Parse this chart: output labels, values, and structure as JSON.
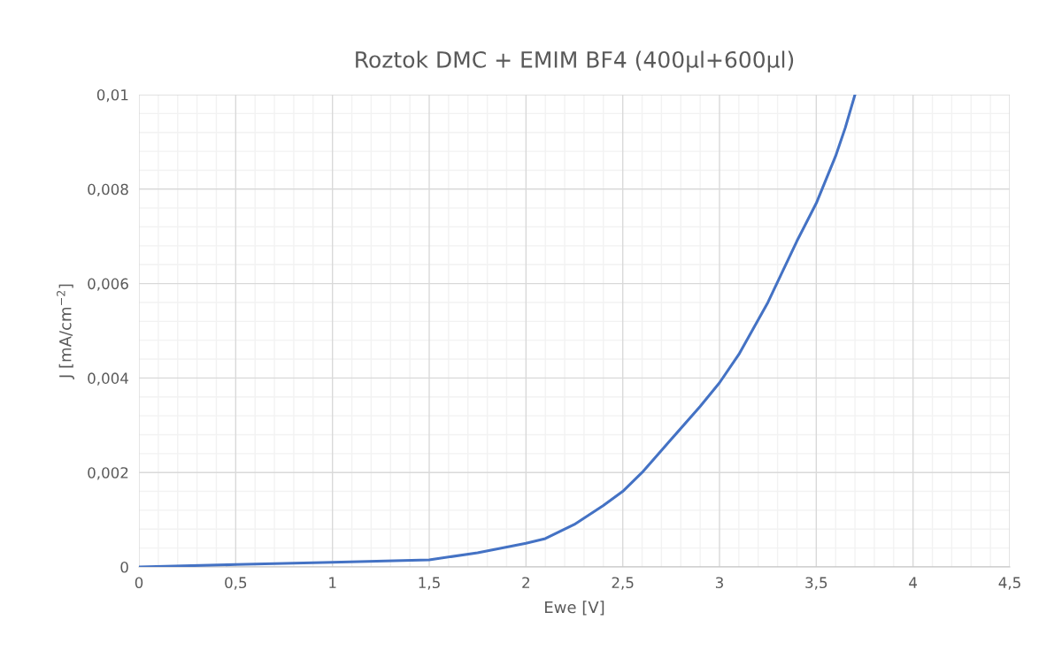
{
  "chart_data": {
    "type": "line",
    "title": "Roztok DMC + EMIM BF4 (400µl+600µl)",
    "xlabel": "Ewe [V]",
    "ylabel": "J [mA/cm$^{−2}$]",
    "series": [
      {
        "color": "#4472c4",
        "x": [
          0,
          0.5,
          1.0,
          1.5,
          1.75,
          2.0,
          2.1,
          2.25,
          2.4,
          2.5,
          2.6,
          2.75,
          2.9,
          3.0,
          3.1,
          3.25,
          3.4,
          3.5,
          3.6,
          3.65,
          3.7
        ],
        "values": [
          0,
          5e-05,
          0.0001,
          0.00015,
          0.0003,
          0.0005,
          0.0006,
          0.0009,
          0.0013,
          0.0016,
          0.002,
          0.0027,
          0.0034,
          0.0039,
          0.0045,
          0.0056,
          0.0069,
          0.0077,
          0.0087,
          0.0093,
          0.01
        ]
      }
    ],
    "xlim": [
      0,
      4.5
    ],
    "ylim": [
      0,
      0.01
    ],
    "xticks": [
      0,
      {
        "value": 0.5,
        "label": "0,5"
      },
      1,
      {
        "value": 1.5,
        "label": "1,5"
      },
      2,
      {
        "value": 2.5,
        "label": "2,5"
      },
      3,
      {
        "value": 3.5,
        "label": "3,5"
      },
      4,
      {
        "value": 4.5,
        "label": "4,5"
      }
    ],
    "yticks": [
      0,
      {
        "value": 0.002,
        "label": "0,002"
      },
      {
        "value": 0.004,
        "label": "0,004"
      },
      {
        "value": 0.006,
        "label": "0,006"
      },
      {
        "value": 0.008,
        "label": "0,008"
      },
      {
        "value": 0.01,
        "label": "0,01"
      }
    ],
    "grid": true,
    "marker": "none",
    "line_style": "solid"
  }
}
